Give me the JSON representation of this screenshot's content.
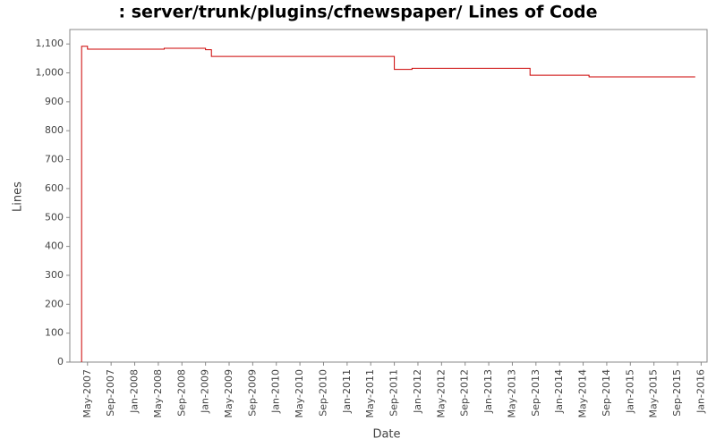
{
  "chart_data": {
    "type": "step",
    "title": ": server/trunk/plugins/cfnewspaper/ Lines of Code",
    "x_label": "Date",
    "y_label": "Lines",
    "x": [
      "2007-04",
      "2007-04",
      "2007-05",
      "2008-06",
      "2009-01",
      "2009-02",
      "2011-09",
      "2011-12",
      "2013-08",
      "2014-06",
      "2015-12"
    ],
    "series": [
      {
        "name": "Lines",
        "color": "#cc0000",
        "values": [
          0,
          1092,
          1082,
          1085,
          1080,
          1057,
          1012,
          1016,
          992,
          986,
          986
        ]
      }
    ],
    "xlim": [
      "2007-02",
      "2016-02"
    ],
    "xticks": [
      {
        "value": "2007-05",
        "label": "May-2007"
      },
      {
        "value": "2007-09",
        "label": "Sep-2007"
      },
      {
        "value": "2008-01",
        "label": "Jan-2008"
      },
      {
        "value": "2008-05",
        "label": "May-2008"
      },
      {
        "value": "2008-09",
        "label": "Sep-2008"
      },
      {
        "value": "2009-01",
        "label": "Jan-2009"
      },
      {
        "value": "2009-05",
        "label": "May-2009"
      },
      {
        "value": "2009-09",
        "label": "Sep-2009"
      },
      {
        "value": "2010-01",
        "label": "Jan-2010"
      },
      {
        "value": "2010-05",
        "label": "May-2010"
      },
      {
        "value": "2010-09",
        "label": "Sep-2010"
      },
      {
        "value": "2011-01",
        "label": "Jan-2011"
      },
      {
        "value": "2011-05",
        "label": "May-2011"
      },
      {
        "value": "2011-09",
        "label": "Sep-2011"
      },
      {
        "value": "2012-01",
        "label": "Jan-2012"
      },
      {
        "value": "2012-05",
        "label": "May-2012"
      },
      {
        "value": "2012-09",
        "label": "Sep-2012"
      },
      {
        "value": "2013-01",
        "label": "Jan-2013"
      },
      {
        "value": "2013-05",
        "label": "May-2013"
      },
      {
        "value": "2013-09",
        "label": "Sep-2013"
      },
      {
        "value": "2014-01",
        "label": "Jan-2014"
      },
      {
        "value": "2014-05",
        "label": "May-2014"
      },
      {
        "value": "2014-09",
        "label": "Sep-2014"
      },
      {
        "value": "2015-01",
        "label": "Jan-2015"
      },
      {
        "value": "2015-05",
        "label": "May-2015"
      },
      {
        "value": "2015-09",
        "label": "Sep-2015"
      },
      {
        "value": "2016-01",
        "label": "Jan-2016"
      }
    ],
    "ylim": [
      0,
      1150
    ],
    "yticks": [
      0,
      100,
      200,
      300,
      400,
      500,
      600,
      700,
      800,
      900,
      {
        "value": 1000,
        "label": "1,000"
      },
      {
        "value": 1100,
        "label": "1,100"
      }
    ],
    "grid": false
  }
}
